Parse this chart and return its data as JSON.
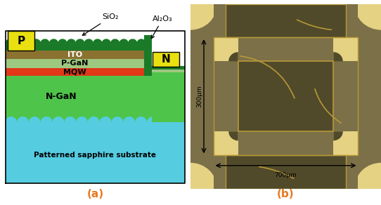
{
  "fig_width": 5.42,
  "fig_height": 2.92,
  "dpi": 100,
  "colors": {
    "white": "#ffffff",
    "green_dark": "#1a7a28",
    "green_sio2": "#2e9e3a",
    "green_ngan": "#4ec44a",
    "cyan": "#55cce0",
    "ito_color": "#8b7230",
    "pgan_color": "#9dc880",
    "mqw_color": "#e03818",
    "yellow": "#e8e010",
    "label_color": "#e87820",
    "bg_micro": "#7a6e48",
    "pad_micro": "#e8d898",
    "dark_micro": "#5a5230",
    "line_micro": "#c0a840"
  },
  "panel_a_label": "(a)",
  "panel_b_label": "(b)",
  "sio2_label": "SiO₂",
  "al2o3_label": "Al₂O₃",
  "ito_label": "ITO",
  "pgan_label": "P-GaN",
  "mqw_label": "MQW",
  "ngan_label": "N-GaN",
  "substrate_label": "Patterned sapphire substrate",
  "p_label": "P",
  "n_label": "N",
  "dim_300": "300μm",
  "dim_700": "700μm"
}
